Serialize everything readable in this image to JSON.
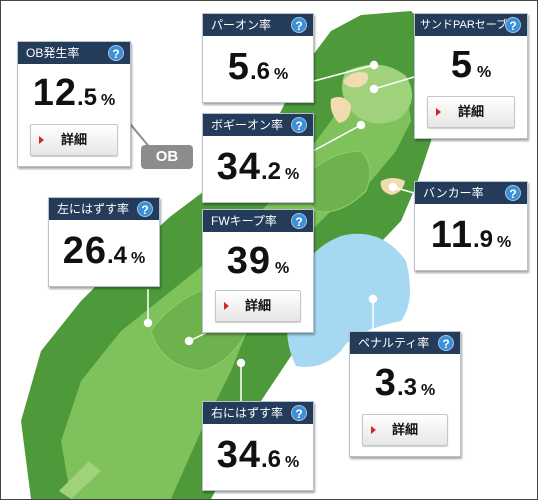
{
  "cards": {
    "ob": {
      "title": "OB発生率",
      "int": "12",
      "dec": ".5",
      "unit": "%",
      "detail": "詳細",
      "help": "?"
    },
    "par_on": {
      "title": "パーオン率",
      "int": "5",
      "dec": ".6",
      "unit": "%",
      "help": "?"
    },
    "sand_save": {
      "title": "サンドPARセーブ率",
      "int": "5",
      "dec": "",
      "unit": "%",
      "detail": "詳細",
      "help": "?"
    },
    "bogey_on": {
      "title": "ボギーオン率",
      "int": "34",
      "dec": ".2",
      "unit": "%",
      "help": "?"
    },
    "bunker": {
      "title": "バンカー率",
      "int": "11",
      "dec": ".9",
      "unit": "%",
      "help": "?"
    },
    "left_miss": {
      "title": "左にはずす率",
      "int": "26",
      "dec": ".4",
      "unit": "%",
      "help": "?"
    },
    "fw_keep": {
      "title": "FWキープ率",
      "int": "39",
      "dec": "",
      "unit": "%",
      "detail": "詳細",
      "help": "?"
    },
    "penalty": {
      "title": "ペナルティ率",
      "int": "3",
      "dec": ".3",
      "unit": "%",
      "detail": "詳細",
      "help": "?"
    },
    "right_miss": {
      "title": "右にはずす率",
      "int": "34",
      "dec": ".6",
      "unit": "%",
      "help": "?"
    }
  },
  "ob_tag": "OB",
  "colors": {
    "header": "#243b5a",
    "help": "#3d8fd6",
    "rough": "#4e9a3b",
    "fairway": "#7fc15b",
    "water": "#a6d8f2",
    "sand": "#f1dcb2",
    "arrow": "#d32626"
  }
}
